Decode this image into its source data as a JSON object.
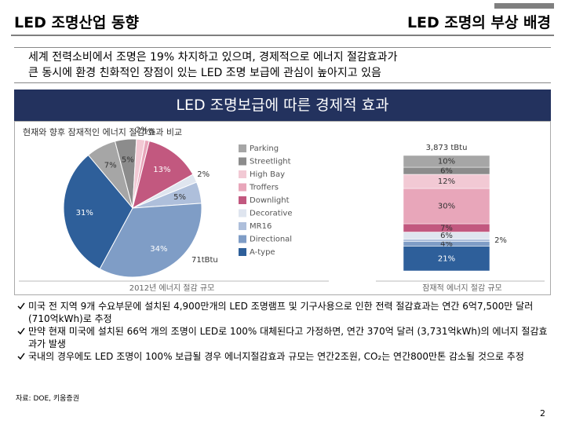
{
  "header": {
    "left": "LED 조명산업 동향",
    "right": "LED 조명의 부상 배경"
  },
  "intro": [
    "세계 전력소비에서 조명은 19% 차지하고 있으며, 경제적으로 에너지 절감효과가",
    "큰 동시에 환경 친화적인 장점이 있는 LED 조명 보급에 관심이 높아지고 있음"
  ],
  "banner": "LED 조명보급에 따른 경제적 효과",
  "chart": {
    "type": "pie-and-stacked-bar",
    "title": "현재와 향후 잠재적인 에너지 절감 효과 비교",
    "categories": [
      "Parking",
      "Streetlight",
      "High Bay",
      "Troffers",
      "Downlight",
      "Decorative",
      "MR16",
      "Directional",
      "A-type"
    ],
    "colors": [
      "#a6a6a6",
      "#8c8c8c",
      "#f2c9d4",
      "#e8a6ba",
      "#c2587f",
      "#dfe5ef",
      "#aebfdb",
      "#7f9dc6",
      "#2e5f9a"
    ],
    "pie": {
      "values": [
        7,
        5,
        2,
        1,
        13,
        2,
        5,
        34,
        31
      ],
      "value_labels": [
        "7%",
        "5%",
        "2%",
        "1%",
        "13%",
        "2%",
        "5%",
        "34%",
        "31%"
      ],
      "total_label": "71tBtu",
      "x_label": "2012년 에너지 절감 규모"
    },
    "bar": {
      "values": [
        10,
        6,
        12,
        30,
        7,
        6,
        2,
        4,
        21
      ],
      "value_labels": [
        "10%",
        "6%",
        "12%",
        "30%",
        "7%",
        "6%",
        "2%",
        "4%",
        "21%"
      ],
      "total_label": "3,873 tBtu",
      "x_label": "잠재적 에너지 절감 규모"
    }
  },
  "bullets": [
    "미국 전 지역 9개 수요부문에 설치된 4,900만개의 LED 조명램프 및 기구사용으로 인한 전력 절감효과는 연간 6억7,500만 달러(710억kWh)로 추정",
    "만약 현재 미국에 설치된 66억 개의 조명이 LED로 100% 대체된다고 가정하면, 연간 370억 달러 (3,731억kWh)의 에너지 절감효과가 발생",
    "국내의 경우에도 LED 조명이 100% 보급될 경우 에너지절감효과 규모는 연간2조원, CO₂는 연간800만톤 감소될 것으로 추정"
  ],
  "source": "자료: DOE, 키움증권",
  "page_number": "2"
}
